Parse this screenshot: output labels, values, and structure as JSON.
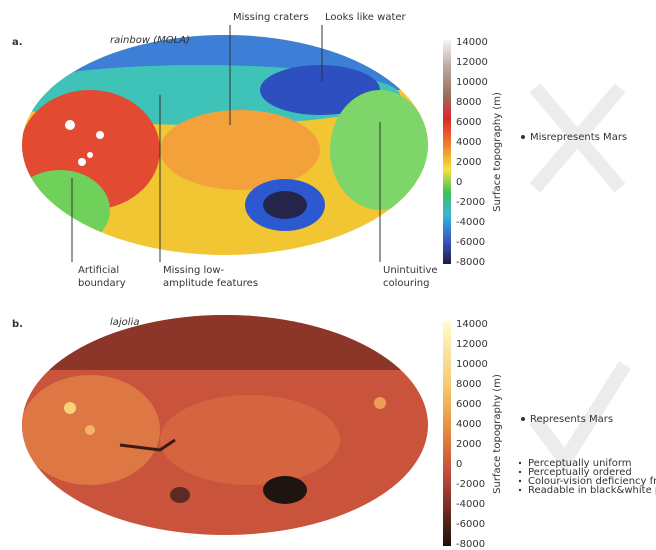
{
  "panels": [
    {
      "label": "a.",
      "colormap": "rainbow (MOLA)",
      "colorbar": {
        "label": "Surface topography (m)",
        "ticks": [
          14000,
          12000,
          10000,
          8000,
          6000,
          4000,
          2000,
          0,
          -2000,
          -4000,
          -6000,
          -8000
        ]
      },
      "annotations": [
        [
          "Missing craters"
        ],
        [
          "Looks like water"
        ],
        [
          "Artificial",
          "boundary"
        ],
        [
          "Missing low-",
          "amplitude features"
        ],
        [
          "Unintuitive",
          "colouring"
        ]
      ],
      "verdict": "Misrepresents Mars"
    },
    {
      "label": "b.",
      "colormap": "lajolia",
      "colorbar": {
        "label": "Surface topography (m)",
        "ticks": [
          14000,
          12000,
          10000,
          8000,
          6000,
          4000,
          2000,
          0,
          -2000,
          -4000,
          -6000,
          -8000
        ]
      },
      "verdict": "Represents Mars",
      "properties": [
        "Perceptually uniform",
        "Perceptually ordered",
        "Colour-vision deficiency friendly",
        "Readable in black&white print"
      ]
    }
  ]
}
